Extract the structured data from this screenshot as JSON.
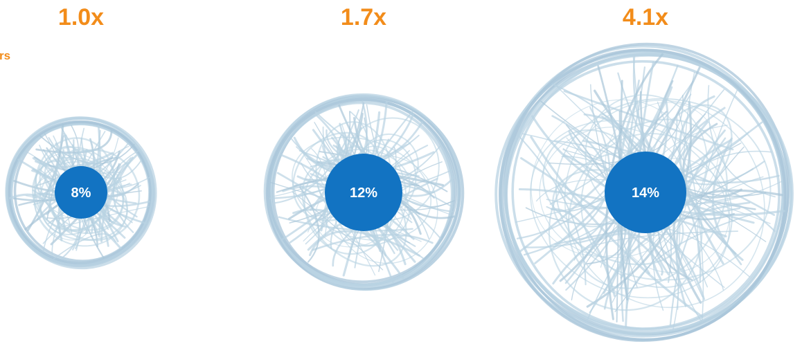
{
  "chart_data": {
    "type": "bubble",
    "side_label": "rs",
    "groups": [
      {
        "multiplier": "1.0x",
        "multiplier_value": 1.0,
        "inner_label": "8%",
        "inner_value": 8
      },
      {
        "multiplier": "1.7x",
        "multiplier_value": 1.7,
        "inner_label": "12%",
        "inner_value": 12
      },
      {
        "multiplier": "4.1x",
        "multiplier_value": 4.1,
        "inner_label": "14%",
        "inner_value": 14
      }
    ]
  },
  "colors": {
    "multiplier_text": "#f28c1a",
    "scribble": "#b9d3e3",
    "scribble_dark": "#a9c6d9",
    "inner_circle": "#1273c2",
    "inner_text": "#ffffff"
  }
}
